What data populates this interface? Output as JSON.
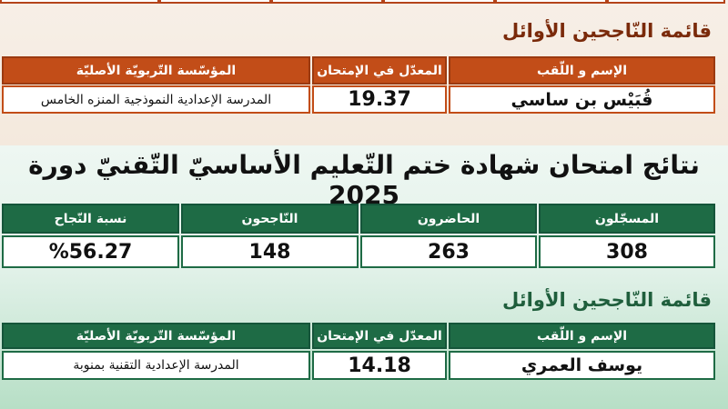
{
  "brown_section": {
    "heading": "قائمة النّاجحين الأوائل",
    "headers": {
      "name": "الإسم و اللّقب",
      "average": "المعدّل في الإمتحان",
      "school": "المؤسّسة التّربويّة الأصليّة"
    },
    "row": {
      "name": "قُبَيْس بن ساسي",
      "average": "19.37",
      "school": "المدرسة الإعدادية النموذجية المنزه الخامس"
    }
  },
  "results_title": "نتائج امتحان شهادة ختم التّعليم الأساسيّ التّقنيّ دورة 2025",
  "stats": {
    "headers": {
      "registered": "المسجّلون",
      "present": "الحاضرون",
      "passed": "النّاجحون",
      "rate": "نسبة النّجاح"
    },
    "values": {
      "registered": "308",
      "present": "263",
      "passed": "148",
      "rate": "%56.27"
    }
  },
  "green_section": {
    "heading": "قائمة النّاجحين الأوائل",
    "headers": {
      "name": "الإسم و اللّقب",
      "average": "المعدّل في الإمتحان",
      "school": "المؤسّسة التّربويّة الأصليّة"
    },
    "row": {
      "name": "يوسف العمري",
      "average": "14.18",
      "school": "المدرسة الإعدادية التقنية بمنوبة"
    }
  },
  "colors": {
    "brown_accent": "#c24d18",
    "green_accent": "#1e6b45",
    "brown_heading_text": "#7a2a0a",
    "green_heading_text": "#1f5e3c"
  }
}
